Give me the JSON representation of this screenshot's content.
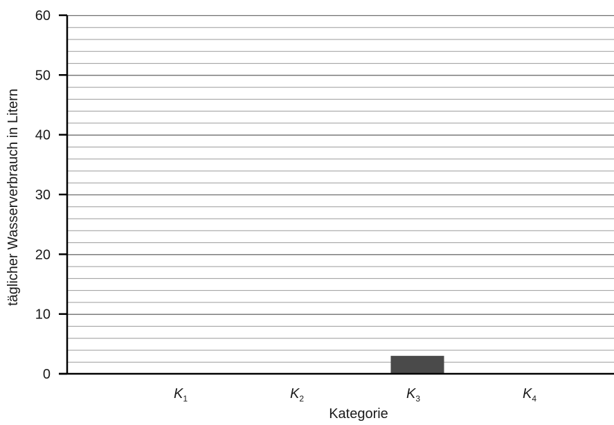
{
  "chart_data": {
    "type": "bar",
    "xlabel": "Kategorie",
    "ylabel": "täglicher Wasserverbrauch in Litern",
    "categories": [
      {
        "base": "K",
        "sub": "1"
      },
      {
        "base": "K",
        "sub": "2"
      },
      {
        "base": "K",
        "sub": "3"
      },
      {
        "base": "K",
        "sub": "4"
      }
    ],
    "values": [
      null,
      null,
      3,
      null
    ],
    "ylim": [
      0,
      60
    ],
    "yticks": [
      0,
      10,
      20,
      30,
      40,
      50,
      60
    ],
    "y_minor_step": 2,
    "grid": true,
    "bar_color": "#4a4a4a",
    "grid_major_color": "#6e6e6e",
    "grid_minor_color": "#9a9a9a",
    "axis_color": "#000000"
  }
}
